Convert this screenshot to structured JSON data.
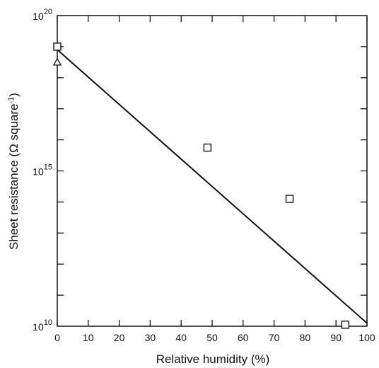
{
  "chart_data": {
    "type": "scatter",
    "xlabel": "Relative humidity (%)",
    "ylabel": "Sheet resistance (Ω square",
    "ylabel_sup": "-1",
    "ylabel_end": ")",
    "xlim": [
      0,
      100
    ],
    "ylim": [
      10,
      20
    ],
    "y_scale": "log",
    "x_ticks": [
      0,
      10,
      20,
      30,
      40,
      50,
      60,
      70,
      80,
      90,
      100
    ],
    "y_tick_labels": [
      {
        "base": "10",
        "exp": "10",
        "value": 10
      },
      {
        "base": "10",
        "exp": "15",
        "value": 15
      },
      {
        "base": "10",
        "exp": "20",
        "value": 20
      }
    ],
    "grid": false,
    "series": [
      {
        "marker": "square",
        "points": [
          {
            "x": 0,
            "y": 19.0
          },
          {
            "x": 48.5,
            "y": 15.75
          },
          {
            "x": 75,
            "y": 14.1
          },
          {
            "x": 93,
            "y": 10.05
          }
        ]
      },
      {
        "marker": "triangle",
        "points": [
          {
            "x": 0,
            "y": 18.5
          }
        ]
      }
    ],
    "fit_line": {
      "points": [
        {
          "x": 0,
          "y": 18.9
        },
        {
          "x": 100,
          "y": 10.1
        }
      ]
    }
  }
}
